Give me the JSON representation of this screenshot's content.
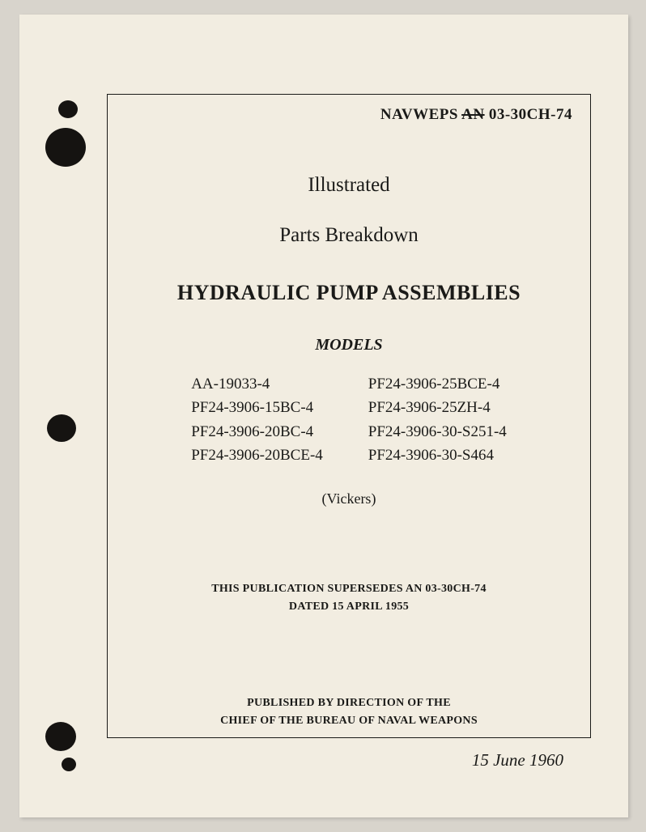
{
  "document": {
    "doc_prefix": "NAVWEPS",
    "doc_struck": "AN",
    "doc_number": "03-30CH-74",
    "line1": "Illustrated",
    "line2": "Parts Breakdown",
    "main_title": "HYDRAULIC PUMP ASSEMBLIES",
    "models_label": "MODELS",
    "models_col1": [
      "AA-19033-4",
      "PF24-3906-15BC-4",
      "PF24-3906-20BC-4",
      "PF24-3906-20BCE-4"
    ],
    "models_col2": [
      "PF24-3906-25BCE-4",
      "PF24-3906-25ZH-4",
      "PF24-3906-30-S251-4",
      "PF24-3906-30-S464"
    ],
    "manufacturer": "(Vickers)",
    "supersedes_line1": "THIS PUBLICATION SUPERSEDES AN 03-30CH-74",
    "supersedes_line2": "DATED 15 APRIL 1955",
    "published_line1": "PUBLISHED BY DIRECTION OF THE",
    "published_line2": "CHIEF OF THE BUREAU OF NAVAL WEAPONS",
    "date": "15 June 1960"
  },
  "colors": {
    "background": "#d8d4cc",
    "paper": "#f2ede1",
    "ink": "#1a1a18",
    "hole": "#151311"
  }
}
